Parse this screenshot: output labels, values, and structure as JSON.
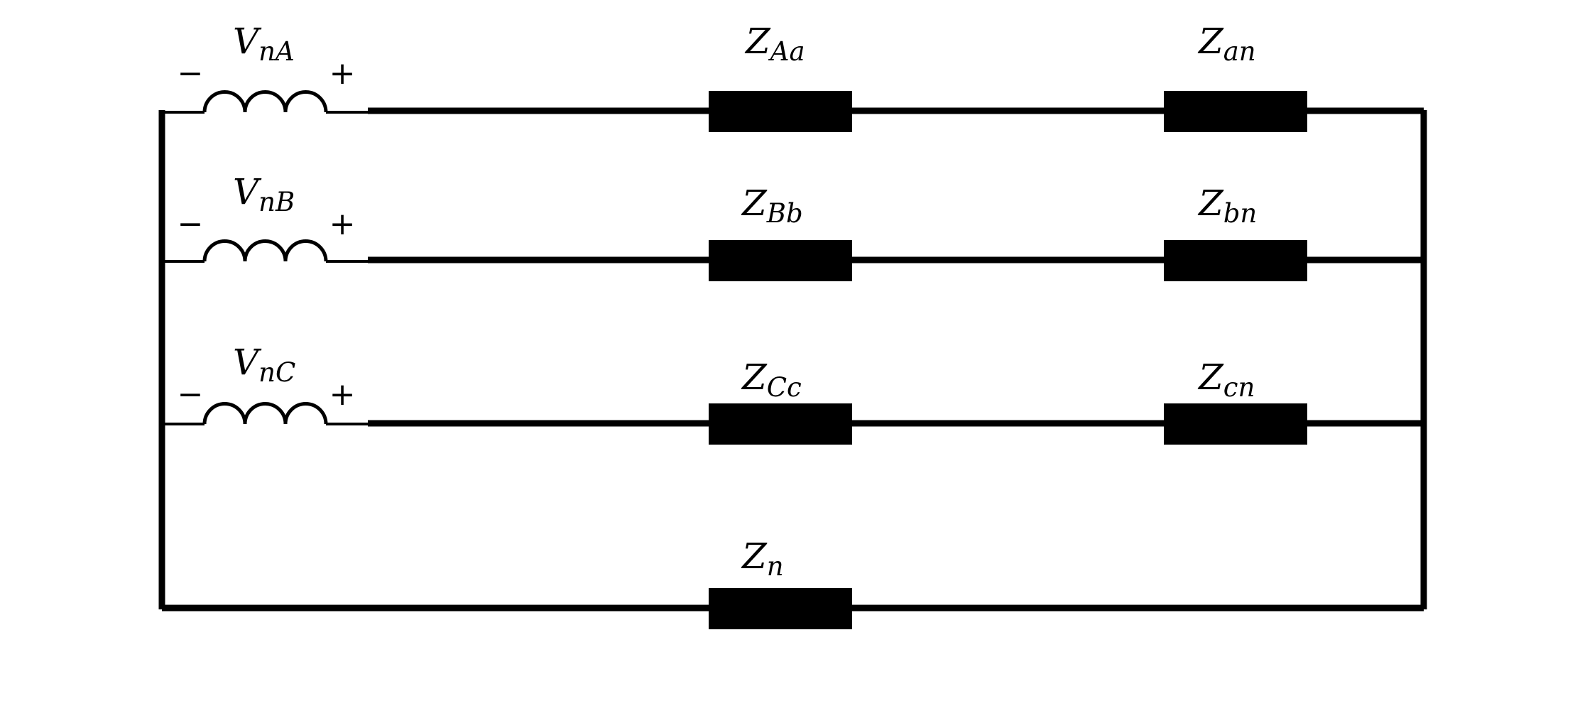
{
  "sources": [
    {
      "symbol": "V",
      "subscript": "nA",
      "minus": "−",
      "plus": "+"
    },
    {
      "symbol": "V",
      "subscript": "nB",
      "minus": "−",
      "plus": "+"
    },
    {
      "symbol": "V",
      "subscript": "nC",
      "minus": "−",
      "plus": "+"
    }
  ],
  "line_impedances": [
    {
      "symbol": "Z",
      "subscript": "Aa"
    },
    {
      "symbol": "Z",
      "subscript": "Bb"
    },
    {
      "symbol": "Z",
      "subscript": "Cc"
    }
  ],
  "load_impedances": [
    {
      "symbol": "Z",
      "subscript": "an"
    },
    {
      "symbol": "Z",
      "subscript": "bn"
    },
    {
      "symbol": "Z",
      "subscript": "cn"
    }
  ],
  "neutral_impedance": {
    "symbol": "Z",
    "subscript": "n"
  },
  "colors": {
    "line": "#000000",
    "background": "#ffffff"
  }
}
